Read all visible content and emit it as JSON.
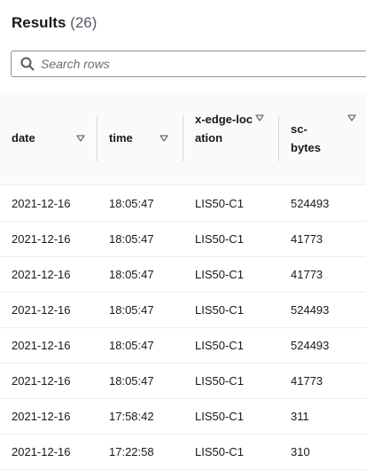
{
  "results": {
    "title": "Results",
    "count": "(26)"
  },
  "search": {
    "placeholder": "Search rows"
  },
  "table": {
    "columns": [
      {
        "label": "date"
      },
      {
        "label": "time"
      },
      {
        "label": "x-edge-location"
      },
      {
        "label": "sc-bytes"
      }
    ],
    "rows": [
      [
        "2021-12-16",
        "18:05:47",
        "LIS50-C1",
        "524493"
      ],
      [
        "2021-12-16",
        "18:05:47",
        "LIS50-C1",
        "41773"
      ],
      [
        "2021-12-16",
        "18:05:47",
        "LIS50-C1",
        "41773"
      ],
      [
        "2021-12-16",
        "18:05:47",
        "LIS50-C1",
        "524493"
      ],
      [
        "2021-12-16",
        "18:05:47",
        "LIS50-C1",
        "524493"
      ],
      [
        "2021-12-16",
        "18:05:47",
        "LIS50-C1",
        "41773"
      ],
      [
        "2021-12-16",
        "17:58:42",
        "LIS50-C1",
        "311"
      ],
      [
        "2021-12-16",
        "17:22:58",
        "LIS50-C1",
        "310"
      ]
    ]
  },
  "icons": {
    "search": "search-icon",
    "sort": "caret-down-icon"
  },
  "colors": {
    "text": "#16191f",
    "muted": "#545b64",
    "border": "#eaeded",
    "header_bg": "#fafafa"
  }
}
